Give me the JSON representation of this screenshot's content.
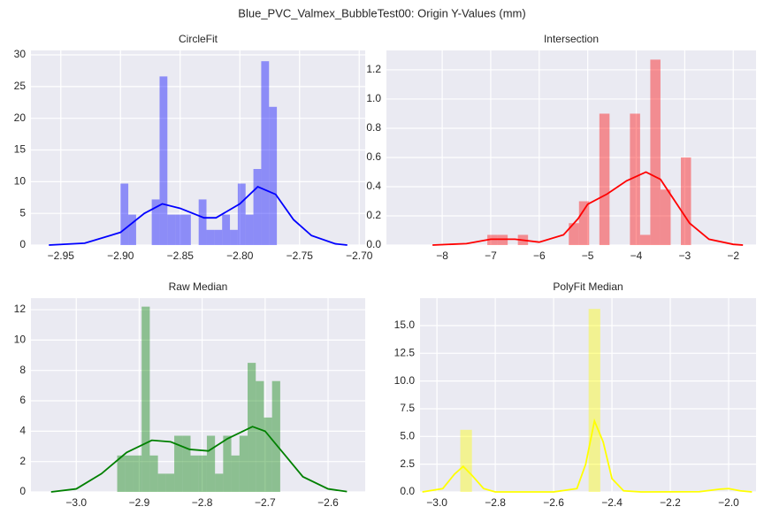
{
  "title": "Blue_PVC_Valmex_BubbleTest00: Origin Y-Values (mm)",
  "chart_data": [
    {
      "type": "histogram",
      "title": "CircleFit",
      "color": "blue",
      "bins": [
        -2.9,
        -2.89345,
        -2.8869,
        -2.88035,
        -2.8738,
        -2.86725,
        -2.8607,
        -2.85415,
        -2.8476,
        -2.84105,
        -2.8345,
        -2.82795,
        -2.8214,
        -2.81485,
        -2.8083,
        -2.80175,
        -2.7952,
        -2.78865,
        -2.7821,
        -2.77555,
        -2.769
      ],
      "counts": [
        9.7,
        4.8,
        0,
        0,
        7.2,
        26.6,
        4.8,
        4.8,
        4.8,
        0,
        7.2,
        2.4,
        2.4,
        4.8,
        2.4,
        9.7,
        4.8,
        12,
        29,
        21.8
      ],
      "line": {
        "x": [
          -2.96,
          -2.93,
          -2.9,
          -2.88,
          -2.865,
          -2.85,
          -2.83,
          -2.82,
          -2.8,
          -2.785,
          -2.77,
          -2.755,
          -2.74,
          -2.72,
          -2.71
        ],
        "values": [
          0,
          0.3,
          2,
          5,
          6.5,
          5.8,
          4.3,
          4.3,
          6.5,
          9.2,
          8,
          4,
          1.5,
          0.2,
          0
        ]
      },
      "xlim": [
        -2.975,
        -2.695
      ],
      "ylim": [
        0,
        30.7
      ],
      "xticks": [
        {
          "value": -2.95,
          "label": "−2.95"
        },
        {
          "value": -2.9,
          "label": "−2.90"
        },
        {
          "value": -2.85,
          "label": "−2.85"
        },
        {
          "value": -2.8,
          "label": "−2.80"
        },
        {
          "value": -2.75,
          "label": "−2.75"
        },
        {
          "value": -2.7,
          "label": "−2.70"
        }
      ],
      "yticks": [
        0,
        5,
        10,
        15,
        20,
        25,
        30
      ],
      "grid": true
    },
    {
      "type": "histogram",
      "title": "Intersection",
      "color": "red",
      "bins": [
        -7.07,
        -6.86,
        -6.65,
        -6.44,
        -6.23,
        -6.02,
        -5.81,
        -5.6,
        -5.39,
        -5.18,
        -4.97,
        -4.76,
        -4.55,
        -4.34,
        -4.13,
        -3.92,
        -3.71,
        -3.5,
        -3.29,
        -3.08,
        -2.87
      ],
      "counts": [
        0.07,
        0.07,
        0,
        0.07,
        0,
        0,
        0,
        0,
        0.15,
        0.3,
        0,
        0.9,
        0,
        0,
        0.9,
        0.07,
        1.27,
        0.38,
        0,
        0.6
      ],
      "line": {
        "x": [
          -8.2,
          -7.5,
          -7,
          -6.5,
          -6,
          -5.5,
          -5.2,
          -5,
          -4.6,
          -4.2,
          -3.8,
          -3.5,
          -3.2,
          -2.9,
          -2.5,
          -2,
          -1.8
        ],
        "values": [
          0,
          0.01,
          0.04,
          0.04,
          0.02,
          0.07,
          0.18,
          0.28,
          0.35,
          0.44,
          0.5,
          0.45,
          0.3,
          0.15,
          0.04,
          0.005,
          0
        ]
      },
      "xlim": [
        -9.15,
        -1.53
      ],
      "ylim": [
        0,
        1.333
      ],
      "xticks": [
        {
          "value": -8,
          "label": "−8"
        },
        {
          "value": -7,
          "label": "−7"
        },
        {
          "value": -6,
          "label": "−6"
        },
        {
          "value": -5,
          "label": "−5"
        },
        {
          "value": -4,
          "label": "−4"
        },
        {
          "value": -3,
          "label": "−3"
        },
        {
          "value": -2,
          "label": "−2"
        }
      ],
      "yticks": [
        {
          "value": 0,
          "label": "0.0"
        },
        0.2,
        0.4,
        0.6,
        0.8,
        {
          "value": 1,
          "label": "1.0"
        },
        1.2
      ],
      "grid": true
    },
    {
      "type": "histogram",
      "title": "Raw Median",
      "color": "green",
      "bins": [
        -2.935,
        -2.92205,
        -2.9091,
        -2.89615,
        -2.8832,
        -2.87025,
        -2.8573,
        -2.84435,
        -2.8314,
        -2.81845,
        -2.8055,
        -2.79255,
        -2.7796,
        -2.76665,
        -2.7537,
        -2.74075,
        -2.7278,
        -2.71485,
        -2.7019,
        -2.68895,
        -2.676
      ],
      "counts": [
        2.4,
        2.4,
        2.4,
        12.2,
        2.4,
        1.2,
        1.2,
        3.7,
        3.7,
        2.4,
        2.4,
        3.7,
        1.2,
        3.7,
        2.4,
        3.7,
        8.5,
        7.3,
        4.9,
        7.3
      ],
      "line": {
        "x": [
          -3.04,
          -3,
          -2.96,
          -2.92,
          -2.88,
          -2.85,
          -2.82,
          -2.79,
          -2.76,
          -2.72,
          -2.7,
          -2.67,
          -2.64,
          -2.6,
          -2.57
        ],
        "values": [
          0,
          0.2,
          1.2,
          2.6,
          3.4,
          3.3,
          2.8,
          2.7,
          3.5,
          4.3,
          4,
          2.5,
          1,
          0.2,
          0.02
        ]
      },
      "xlim": [
        -3.072,
        -2.541
      ],
      "ylim": [
        0,
        12.76
      ],
      "xticks": [
        {
          "value": -3,
          "label": "−3.0"
        },
        {
          "value": -2.9,
          "label": "−2.9"
        },
        {
          "value": -2.8,
          "label": "−2.8"
        },
        {
          "value": -2.7,
          "label": "−2.7"
        },
        {
          "value": -2.6,
          "label": "−2.6"
        }
      ],
      "yticks": [
        0,
        2,
        4,
        6,
        8,
        10,
        12
      ],
      "grid": true
    },
    {
      "type": "histogram",
      "title": "PolyFit Median",
      "color": "yellow",
      "bins": [
        -2.92,
        -2.88,
        -2.84,
        -2.8,
        -2.76,
        -2.72,
        -2.68,
        -2.64,
        -2.6,
        -2.56,
        -2.52,
        -2.48,
        -2.44
      ],
      "counts": [
        5.6,
        0,
        0,
        0,
        0,
        0,
        0,
        0,
        0,
        0,
        0,
        16.5
      ],
      "line": {
        "x": [
          -3.05,
          -2.98,
          -2.94,
          -2.91,
          -2.88,
          -2.84,
          -2.8,
          -2.6,
          -2.52,
          -2.49,
          -2.46,
          -2.43,
          -2.4,
          -2.36,
          -2.3,
          -2.1,
          -2.03,
          -2,
          -1.96,
          -1.92
        ],
        "values": [
          0,
          0.3,
          1.6,
          2.3,
          1.5,
          0.3,
          0,
          0,
          0.3,
          2.5,
          6.4,
          4.5,
          1.2,
          0.1,
          0,
          0.02,
          0.25,
          0.3,
          0.1,
          0
        ]
      },
      "xlim": [
        -3.058,
        -1.906
      ],
      "ylim": [
        0,
        17.47
      ],
      "xticks": [
        {
          "value": -3,
          "label": "−3.0"
        },
        {
          "value": -2.8,
          "label": "−2.8"
        },
        {
          "value": -2.6,
          "label": "−2.6"
        },
        {
          "value": -2.4,
          "label": "−2.4"
        },
        {
          "value": -2.2,
          "label": "−2.2"
        },
        {
          "value": -2,
          "label": "−2.0"
        }
      ],
      "yticks": [
        {
          "value": 0,
          "label": "0.0"
        },
        2.5,
        {
          "value": 5,
          "label": "5.0"
        },
        7.5,
        {
          "value": 10,
          "label": "10.0"
        },
        12.5,
        {
          "value": 15,
          "label": "15.0"
        }
      ],
      "grid": true
    }
  ]
}
